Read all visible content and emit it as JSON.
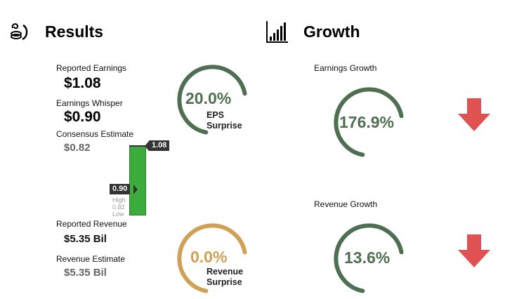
{
  "results": {
    "title": "Results",
    "reported_earnings_label": "Reported Earnings",
    "reported_earnings": "$1.08",
    "whisper_label": "Earnings Whisper",
    "whisper": "$0.90",
    "consensus_label": "Consensus Estimate",
    "consensus": "$0.82",
    "reported_revenue_label": "Reported Revenue",
    "reported_revenue": "$5.35 Bil",
    "revenue_estimate_label": "Revenue Estimate",
    "revenue_estimate": "$5.35 Bil"
  },
  "bar": {
    "top_tag": "1.08",
    "mid_tag": "0.90",
    "high_label": "High",
    "consensus_label": "0.82",
    "low_label": "Low",
    "color": "#3cac3c"
  },
  "eps_surprise": {
    "value": "20.0%",
    "line1": "EPS",
    "line2": "Surprise",
    "color": "#4f6f52"
  },
  "revenue_surprise": {
    "value": "0.0%",
    "line1": "Revenue",
    "line2": "Surprise",
    "color": "#d0a055"
  },
  "growth": {
    "title": "Growth",
    "earnings_label": "Earnings Growth",
    "earnings_value": "176.9%",
    "revenue_label": "Revenue Growth",
    "revenue_value": "13.6%",
    "ring_color": "#4f6f52",
    "arrow_color": "#e05252",
    "earnings_arrow": "arrow-down-icon",
    "revenue_arrow": "arrow-down-icon"
  }
}
